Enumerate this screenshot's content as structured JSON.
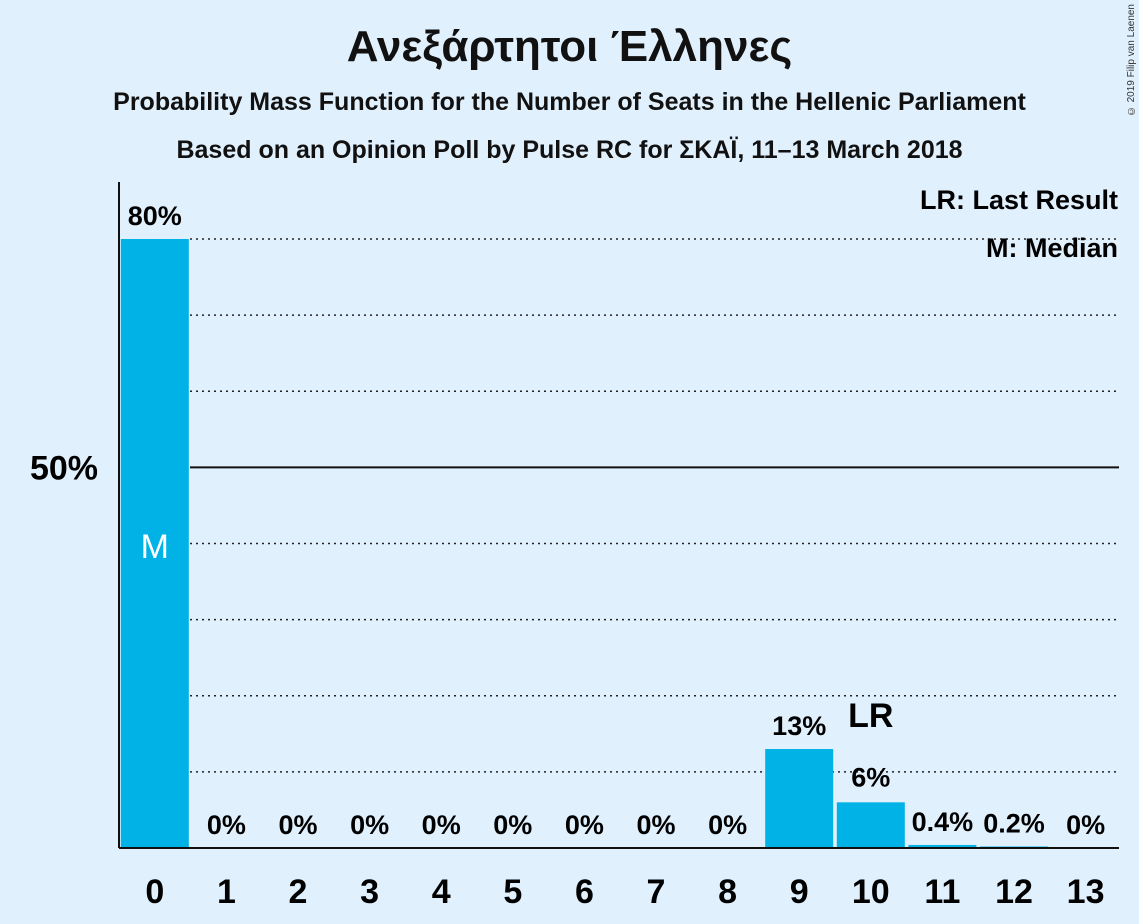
{
  "title": "Ανεξάρτητοι Έλληνες",
  "subtitle1": "Probability Mass Function for the Number of Seats in the Hellenic Parliament",
  "subtitle2": "Based on an Opinion Poll by Pulse RC for ΣΚΑΪ, 11–13 March 2018",
  "credit": "© 2019 Filip van Laenen",
  "legend": {
    "last_result": "LR: Last Result",
    "median": "M: Median"
  },
  "colors": {
    "bar": "#00b2e6",
    "background": "#e1f0fd"
  },
  "chart_data": {
    "type": "bar",
    "categories": [
      "0",
      "1",
      "2",
      "3",
      "4",
      "5",
      "6",
      "7",
      "8",
      "9",
      "10",
      "11",
      "12",
      "13"
    ],
    "values": [
      80,
      0,
      0,
      0,
      0,
      0,
      0,
      0,
      0,
      13,
      6,
      0.4,
      0.2,
      0
    ],
    "labels": [
      "80%",
      "0%",
      "0%",
      "0%",
      "0%",
      "0%",
      "0%",
      "0%",
      "0%",
      "13%",
      "6%",
      "0.4%",
      "0.2%",
      "0%"
    ],
    "ylim": [
      0,
      80
    ],
    "y_ticks": [
      {
        "value": 50,
        "label": "50%"
      }
    ],
    "gridlines": [
      10,
      20,
      30,
      40,
      60,
      70,
      80
    ],
    "median_index": 0,
    "median_marker": "M",
    "last_result_index": 10,
    "last_result_marker": "LR"
  }
}
